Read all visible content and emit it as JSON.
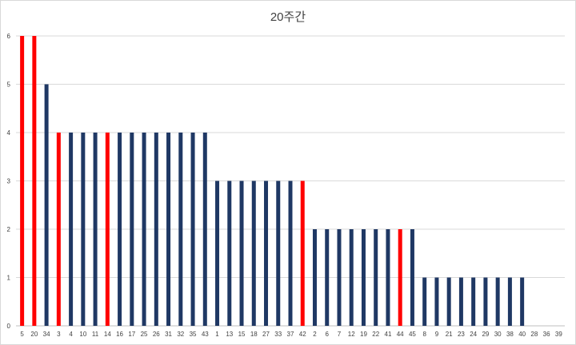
{
  "chart_data": {
    "type": "bar",
    "title": "20주간",
    "xlabel": "",
    "ylabel": "",
    "ylim": [
      0,
      6
    ],
    "yticks": [
      0,
      1,
      2,
      3,
      4,
      5,
      6
    ],
    "grid": true,
    "categories": [
      "5",
      "20",
      "34",
      "3",
      "4",
      "10",
      "11",
      "14",
      "16",
      "17",
      "25",
      "26",
      "31",
      "32",
      "35",
      "43",
      "1",
      "13",
      "15",
      "18",
      "27",
      "33",
      "37",
      "42",
      "2",
      "6",
      "7",
      "12",
      "19",
      "22",
      "41",
      "44",
      "45",
      "8",
      "9",
      "21",
      "23",
      "24",
      "29",
      "30",
      "38",
      "40",
      "28",
      "36",
      "39"
    ],
    "values": [
      6,
      6,
      5,
      4,
      4,
      4,
      4,
      4,
      4,
      4,
      4,
      4,
      4,
      4,
      4,
      4,
      3,
      3,
      3,
      3,
      3,
      3,
      3,
      3,
      2,
      2,
      2,
      2,
      2,
      2,
      2,
      2,
      2,
      1,
      1,
      1,
      1,
      1,
      1,
      1,
      1,
      1,
      0,
      0,
      0
    ],
    "highlighted": [
      "5",
      "20",
      "3",
      "14",
      "42",
      "44"
    ],
    "colors": {
      "normal": "#1f3864",
      "highlight": "#ff0000",
      "grid": "#d9d9d9",
      "axis": "#bfbfbf",
      "text": "#404040"
    }
  }
}
